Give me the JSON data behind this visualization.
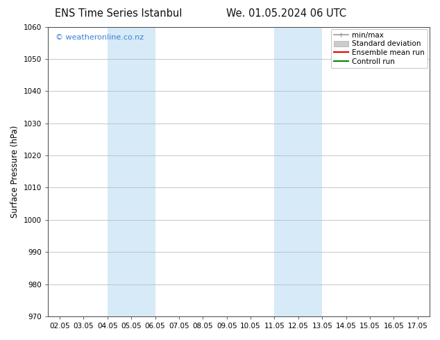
{
  "title_left": "ENS Time Series Istanbul",
  "title_right": "We. 01.05.2024 06 UTC",
  "ylabel": "Surface Pressure (hPa)",
  "ylim": [
    970,
    1060
  ],
  "yticks": [
    970,
    980,
    990,
    1000,
    1010,
    1020,
    1030,
    1040,
    1050,
    1060
  ],
  "x_labels": [
    "02.05",
    "03.05",
    "04.05",
    "05.05",
    "06.05",
    "07.05",
    "08.05",
    "09.05",
    "10.05",
    "11.05",
    "12.05",
    "13.05",
    "14.05",
    "15.05",
    "16.05",
    "17.05"
  ],
  "x_values": [
    2,
    3,
    4,
    5,
    6,
    7,
    8,
    9,
    10,
    11,
    12,
    13,
    14,
    15,
    16,
    17
  ],
  "shaded_regions": [
    {
      "x_start": 4.0,
      "x_end": 6.0,
      "color": "#d6eaf8"
    },
    {
      "x_start": 11.0,
      "x_end": 13.0,
      "color": "#d6eaf8"
    }
  ],
  "watermark_text": "© weatheronline.co.nz",
  "watermark_color": "#3a7fd5",
  "background_color": "#ffffff",
  "legend_labels": [
    "min/max",
    "Standard deviation",
    "Ensemble mean run",
    "Controll run"
  ],
  "legend_colors": [
    "#999999",
    "#cccccc",
    "#dd0000",
    "#008800"
  ],
  "title_fontsize": 10.5,
  "tick_fontsize": 7.5,
  "ylabel_fontsize": 8.5,
  "legend_fontsize": 7.5,
  "watermark_fontsize": 8,
  "grid_color": "#bbbbbb",
  "spine_color": "#444444",
  "xlim_left": 1.5,
  "xlim_right": 17.5
}
